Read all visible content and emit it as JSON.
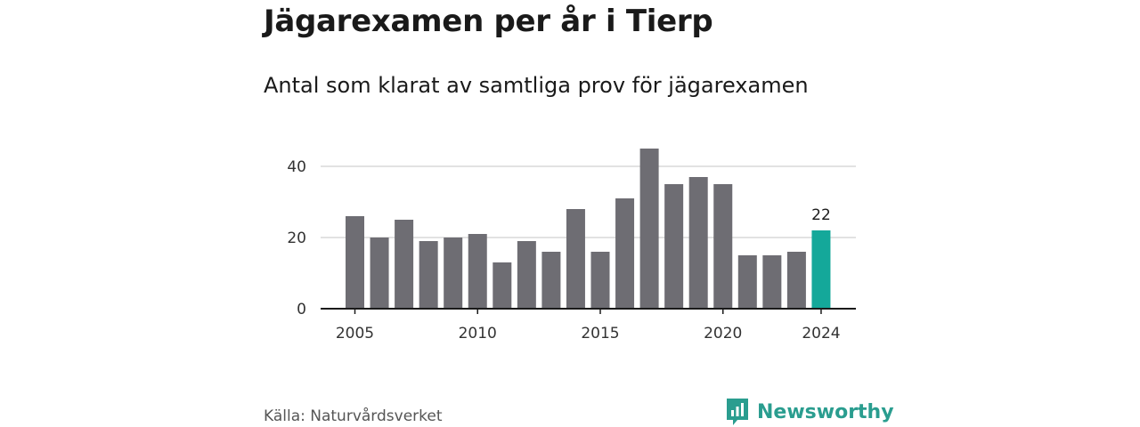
{
  "title": "Jägarexamen per år i Tierp",
  "subtitle": "Antal som klarat av samtliga prov för jägarexamen",
  "source": "Källa: Naturvårdsverket",
  "brand": {
    "name": "Newsworthy",
    "icon": "newsworthy-logo-icon",
    "color": "#2a9d8f"
  },
  "chart_data": {
    "type": "bar",
    "x": [
      2005,
      2006,
      2007,
      2008,
      2009,
      2010,
      2011,
      2012,
      2013,
      2014,
      2015,
      2016,
      2017,
      2018,
      2019,
      2020,
      2021,
      2022,
      2023,
      2024
    ],
    "values": [
      26,
      20,
      25,
      19,
      20,
      21,
      13,
      19,
      16,
      28,
      16,
      31,
      45,
      35,
      37,
      35,
      15,
      15,
      16,
      22
    ],
    "x_ticks": [
      "2005",
      "2010",
      "2015",
      "2020",
      "2024"
    ],
    "y_ticks": [
      "0",
      "20",
      "40"
    ],
    "ylim": [
      0,
      48
    ],
    "grid": true,
    "bar_color": "#6e6d73",
    "highlight_color": "#14a89a",
    "highlight_year": 2024,
    "highlight_label": "22"
  }
}
